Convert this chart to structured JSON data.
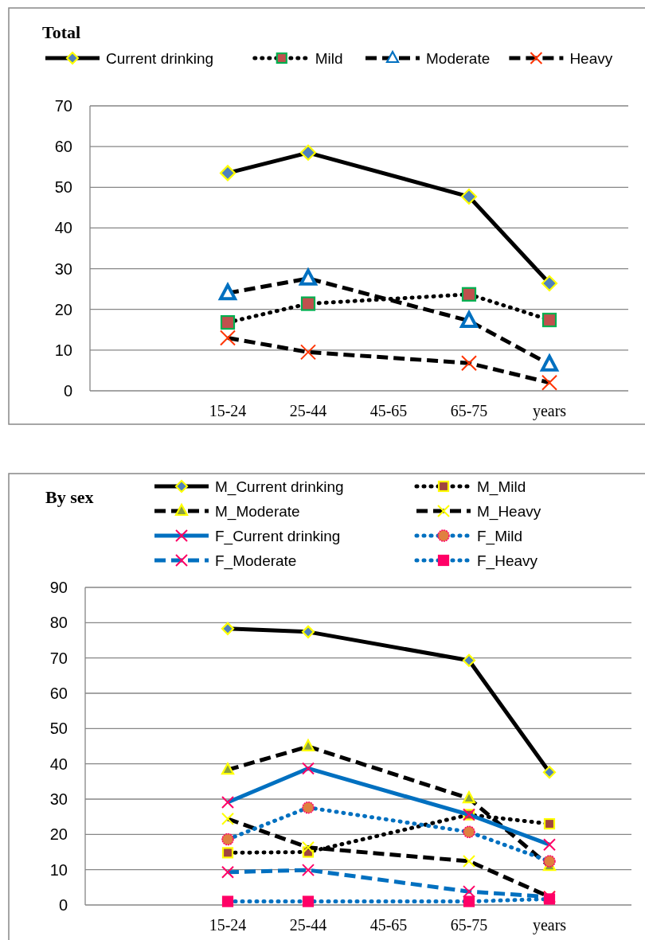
{
  "chart_data": [
    {
      "type": "line",
      "title": "Total",
      "categories": [
        "15-24",
        "25-44",
        "45-65",
        "65-75",
        "years"
      ],
      "ylim": [
        0,
        70
      ],
      "yticks": [
        0,
        10,
        20,
        30,
        40,
        50,
        60,
        70
      ],
      "grid": "y",
      "legend": "top",
      "series": [
        {
          "name": "Current drinking",
          "color": "#000000",
          "marker": "diamond",
          "line_style": "solid",
          "values": [
            53.5,
            58.5,
            null,
            47.7,
            26.4
          ]
        },
        {
          "name": "Mild",
          "color": "#000000",
          "marker": "square",
          "line_style": "dotted",
          "values": [
            16.8,
            21.4,
            null,
            23.7,
            17.4
          ]
        },
        {
          "name": "Moderate",
          "color": "#000000",
          "marker": "triangle",
          "line_style": "dashed",
          "values": [
            24,
            27.6,
            null,
            17.2,
            6.5
          ]
        },
        {
          "name": "Heavy",
          "color": "#000000",
          "marker": "cross",
          "line_style": "dashed",
          "values": [
            13,
            9.5,
            null,
            6.8,
            2
          ]
        }
      ]
    },
    {
      "type": "line",
      "title": "By sex",
      "categories": [
        "15-24",
        "25-44",
        "45-65",
        "65-75",
        "years"
      ],
      "ylim": [
        0,
        90
      ],
      "yticks": [
        0,
        10,
        20,
        30,
        40,
        50,
        60,
        70,
        80,
        90
      ],
      "grid": "y",
      "legend": "top",
      "series": [
        {
          "name": "M_Current drinking",
          "color": "#000000",
          "marker": "diamond",
          "line_style": "solid",
          "values": [
            78.3,
            77.4,
            null,
            69.3,
            37.6
          ]
        },
        {
          "name": "M_Mild",
          "color": "#000000",
          "marker": "square",
          "line_style": "dotted",
          "values": [
            14.8,
            15,
            null,
            25.6,
            23
          ]
        },
        {
          "name": "M_Moderate",
          "color": "#000000",
          "marker": "triangle",
          "line_style": "dashed",
          "values": [
            38.3,
            44.9,
            null,
            30.2,
            11
          ]
        },
        {
          "name": "M_Heavy",
          "color": "#000000",
          "marker": "cross",
          "line_style": "dashed",
          "values": [
            24.4,
            16.3,
            null,
            12.4,
            2.3
          ]
        },
        {
          "name": "F_Current drinking",
          "color": "#0070c0",
          "marker": "cross",
          "line_style": "solid",
          "values": [
            29.1,
            38.7,
            null,
            25.6,
            17.1
          ]
        },
        {
          "name": "F_Mild",
          "color": "#0070c0",
          "marker": "circle",
          "line_style": "dotted",
          "values": [
            18.6,
            27.6,
            null,
            20.7,
            12.4
          ]
        },
        {
          "name": "F_Moderate",
          "color": "#0070c0",
          "marker": "cross",
          "line_style": "dashed",
          "values": [
            9.3,
            9.9,
            null,
            3.8,
            2.3
          ]
        },
        {
          "name": "F_Heavy",
          "color": "#0070c0",
          "marker": "square",
          "line_style": "dotted",
          "values": [
            1,
            1,
            null,
            1,
            1.7
          ]
        }
      ]
    }
  ]
}
